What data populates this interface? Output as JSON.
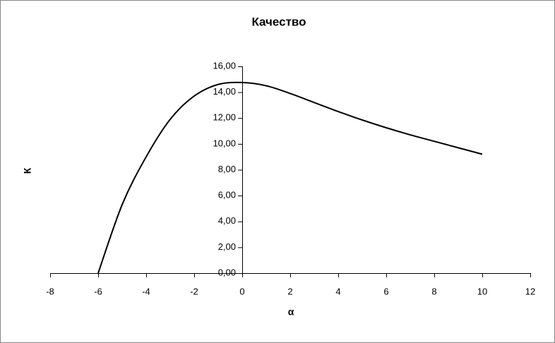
{
  "chart_data": {
    "type": "line",
    "title": "Качество",
    "x_label": "α",
    "y_label": "К",
    "x": [
      -6,
      -5,
      -4,
      -3,
      -2,
      -1,
      0,
      1,
      2,
      3,
      4,
      5,
      6,
      7,
      8,
      9,
      10
    ],
    "series": [
      {
        "name": "К",
        "color": "#000000",
        "values": [
          0,
          5.3,
          9.0,
          11.9,
          13.7,
          14.6,
          14.75,
          14.5,
          13.9,
          13.2,
          12.5,
          11.85,
          11.25,
          10.7,
          10.2,
          9.7,
          9.2
        ]
      }
    ],
    "xlim": [
      -8,
      12
    ],
    "xticks": [
      -8,
      -6,
      -4,
      -2,
      0,
      2,
      4,
      6,
      8,
      10,
      12
    ],
    "ylim": [
      0,
      16
    ],
    "yticks": [
      {
        "value": 0,
        "label": "0,00"
      },
      {
        "value": 2,
        "label": "2,00"
      },
      {
        "value": 4,
        "label": "4,00"
      },
      {
        "value": 6,
        "label": "6,00"
      },
      {
        "value": 8,
        "label": "8,00"
      },
      {
        "value": 10,
        "label": "10,00"
      },
      {
        "value": 12,
        "label": "12,00"
      },
      {
        "value": 14,
        "label": "14,00"
      },
      {
        "value": 16,
        "label": "16,00"
      }
    ],
    "grid": false,
    "legend": false
  }
}
